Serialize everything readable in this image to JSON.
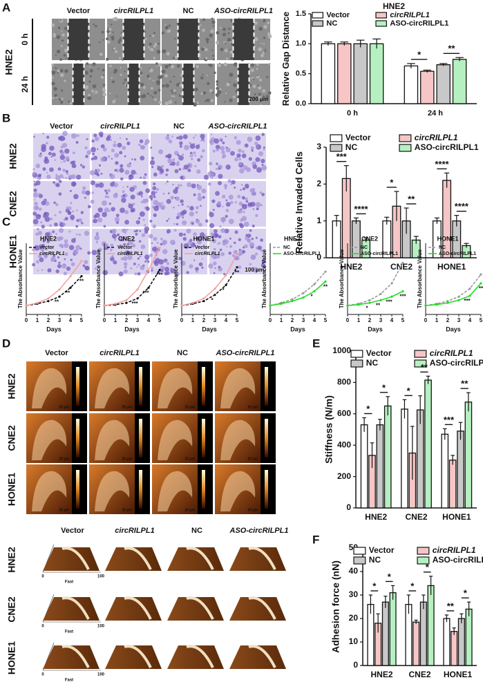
{
  "figure_panels": {
    "letters": [
      "A",
      "B",
      "C",
      "D",
      "E",
      "F"
    ]
  },
  "image_panels": {
    "A": {
      "columns": [
        "Vector",
        "circRILPL1",
        "NC",
        "ASO-circRILPL1"
      ],
      "cell_line": "HNE2",
      "rows": [
        "0 h",
        "24 h"
      ],
      "scale_bar": "200 μm"
    },
    "B": {
      "columns": [
        "Vector",
        "circRILPL1",
        "NC",
        "ASO-circRILPL1"
      ],
      "rows": [
        "HNE2",
        "CNE2",
        "HONE1"
      ],
      "scale_bar": "100 μm"
    },
    "D_top": {
      "columns": [
        "Vector",
        "circRILPL1",
        "NC",
        "ASO-circRILPL1"
      ],
      "rows": [
        "HNE2",
        "CNE2",
        "HONE1"
      ],
      "scale_bar": "20 μm"
    },
    "D_bottom": {
      "columns": [
        "Vector",
        "circRILPL1",
        "NC",
        "ASO-circRILPL1"
      ],
      "rows": [
        "HNE2",
        "CNE2",
        "HONE1"
      ],
      "axis_labels": [
        "Fast",
        "0",
        "100"
      ]
    }
  },
  "chart_data": [
    {
      "type": "bar",
      "title": "HNE2",
      "y_label": "Relative Gap Distance",
      "categories": [
        "0 h",
        "24 h"
      ],
      "series": [
        {
          "name": "Vector",
          "color": "#ffffff",
          "values": [
            1,
            0.63
          ],
          "errors": [
            0.03,
            0.04
          ]
        },
        {
          "name": "circRILPL1",
          "color": "#f6c6c6",
          "values": [
            1,
            0.54
          ],
          "errors": [
            0.03,
            0.02
          ]
        },
        {
          "name": "NC",
          "color": "#c8c8c8",
          "values": [
            1,
            0.65
          ],
          "errors": [
            0.06,
            0.02
          ]
        },
        {
          "name": "ASO-circRILPL1",
          "color": "#b6f0c0",
          "values": [
            1,
            0.74
          ],
          "errors": [
            0.08,
            0.03
          ]
        }
      ],
      "ylim": [
        0,
        1.5
      ],
      "yticks": [
        {
          "value": 0,
          "label": "0.0"
        },
        {
          "value": 0.5,
          "label": "0.5"
        },
        {
          "value": 1,
          "label": "1.0"
        },
        {
          "value": 1.5,
          "label": "1.5"
        }
      ],
      "significance": [
        {
          "category": "24 h",
          "between": [
            "Vector",
            "circRILPL1"
          ],
          "label": "*"
        },
        {
          "category": "24 h",
          "between": [
            "NC",
            "ASO-circRILPL1"
          ],
          "label": "**"
        }
      ]
    },
    {
      "type": "bar",
      "y_label": "Relative Invaded Cells",
      "categories": [
        "HNE2",
        "CNE2",
        "HONE1"
      ],
      "series": [
        {
          "name": "Vector",
          "color": "#ffffff",
          "values": [
            1,
            1,
            1
          ],
          "errors": [
            0.15,
            0.1,
            0.08
          ]
        },
        {
          "name": "circRILPL1",
          "color": "#f6c6c6",
          "values": [
            2.15,
            1.4,
            2.1
          ],
          "errors": [
            0.35,
            0.4,
            0.2
          ]
        },
        {
          "name": "NC",
          "color": "#c8c8c8",
          "values": [
            1,
            1,
            1
          ],
          "errors": [
            0.08,
            0.35,
            0.15
          ]
        },
        {
          "name": "ASO-circRILPL1",
          "color": "#b6f0c0",
          "values": [
            0.48,
            0.48,
            0.33
          ],
          "errors": [
            0.06,
            0.1,
            0.06
          ]
        }
      ],
      "ylim": [
        0,
        3
      ],
      "yticks": [
        0,
        1,
        2,
        3
      ],
      "significance": [
        {
          "category": "HNE2",
          "between": [
            "Vector",
            "circRILPL1"
          ],
          "label": "***"
        },
        {
          "category": "HNE2",
          "between": [
            "NC",
            "ASO-circRILPL1"
          ],
          "label": "****"
        },
        {
          "category": "CNE2",
          "between": [
            "Vector",
            "circRILPL1"
          ],
          "label": "*"
        },
        {
          "category": "CNE2",
          "between": [
            "NC",
            "ASO-circRILPL1"
          ],
          "label": "**"
        },
        {
          "category": "HONE1",
          "between": [
            "Vector",
            "circRILPL1"
          ],
          "label": "****"
        },
        {
          "category": "HONE1",
          "between": [
            "NC",
            "ASO-circRILPL1"
          ],
          "label": "****"
        }
      ]
    },
    {
      "type": "line",
      "title": "HNE2",
      "x_label": "Days",
      "y_label": "The Absorbance Value",
      "x": [
        0,
        1,
        2,
        3,
        4,
        5
      ],
      "xlim": [
        0,
        5
      ],
      "xticks": [
        0,
        1,
        2,
        3,
        4,
        5
      ],
      "ylim": [
        0,
        8
      ],
      "series": [
        {
          "name": "Vector",
          "color": "#111111",
          "line_style": "dashed",
          "values": [
            1,
            1.2,
            1.5,
            2,
            3,
            4.3
          ]
        },
        {
          "name": "circRILPL1",
          "color": "#f4a0a0",
          "line_style": "solid",
          "values": [
            1,
            1.3,
            1.8,
            2.8,
            4.3,
            6
          ]
        }
      ],
      "significance": [
        {
          "x": 3,
          "label": "**"
        },
        {
          "x": 4,
          "label": "**"
        },
        {
          "x": 5,
          "label": "**"
        }
      ]
    },
    {
      "type": "line",
      "title": "CNE2",
      "x_label": "Days",
      "y_label": "The Absorbance Value",
      "x": [
        0,
        1,
        2,
        3,
        4,
        5
      ],
      "xlim": [
        0,
        5
      ],
      "xticks": [
        0,
        1,
        2,
        3,
        4,
        5
      ],
      "ylim": [
        0,
        8
      ],
      "series": [
        {
          "name": "Vector",
          "color": "#111111",
          "line_style": "dashed",
          "values": [
            1,
            1.1,
            1.3,
            1.8,
            3,
            5
          ]
        },
        {
          "name": "circRILPL1",
          "color": "#f4a0a0",
          "line_style": "solid",
          "values": [
            1,
            1.2,
            1.6,
            2.8,
            5,
            7.5
          ]
        }
      ],
      "significance": [
        {
          "x": 3,
          "label": "***"
        },
        {
          "x": 4,
          "label": "***"
        },
        {
          "x": 5,
          "label": "***"
        }
      ]
    },
    {
      "type": "line",
      "title": "HONE1",
      "x_label": "Days",
      "y_label": "The Absorbance Value",
      "x": [
        0,
        1,
        2,
        3,
        4,
        5
      ],
      "xlim": [
        0,
        5
      ],
      "xticks": [
        0,
        1,
        2,
        3,
        4,
        5
      ],
      "ylim": [
        0,
        8
      ],
      "series": [
        {
          "name": "Vector",
          "color": "#111111",
          "line_style": "dashed",
          "values": [
            1,
            1.2,
            1.5,
            2.2,
            3.3,
            5.3
          ]
        },
        {
          "name": "circRILPL1",
          "color": "#f4a0a0",
          "line_style": "solid",
          "values": [
            1,
            1.3,
            1.8,
            2.9,
            4.4,
            6.8
          ]
        }
      ],
      "significance": [
        {
          "x": 3,
          "label": "*"
        },
        {
          "x": 4,
          "label": "*"
        },
        {
          "x": 5,
          "label": "**"
        }
      ]
    },
    {
      "type": "line",
      "title": "HNE2",
      "x_label": "Days",
      "y_label": "The Absorbance Value",
      "x": [
        0,
        1,
        2,
        3,
        4,
        5
      ],
      "xlim": [
        0,
        5
      ],
      "xticks": [
        0,
        1,
        2,
        3,
        4,
        5
      ],
      "ylim": [
        0,
        8
      ],
      "series": [
        {
          "name": "NC",
          "color": "#999999",
          "line_style": "dashed",
          "values": [
            1,
            1.3,
            1.7,
            2.4,
            3.4,
            4.8
          ]
        },
        {
          "name": "ASO-circRILPL1",
          "color": "#22dd22",
          "line_style": "solid",
          "values": [
            1,
            1.2,
            1.5,
            1.9,
            2.6,
            3.7
          ]
        }
      ],
      "significance": [
        {
          "x": 4,
          "label": "*"
        },
        {
          "x": 5,
          "label": "**"
        }
      ]
    },
    {
      "type": "line",
      "title": "CNE2",
      "x_label": "Days",
      "y_label": "The Absorbance Value",
      "x": [
        0,
        1,
        2,
        3,
        4,
        5
      ],
      "xlim": [
        0,
        5
      ],
      "xticks": [
        0,
        1,
        2,
        3,
        4,
        5
      ],
      "ylim": [
        0,
        8
      ],
      "series": [
        {
          "name": "NC",
          "color": "#999999",
          "line_style": "dashed",
          "values": [
            1,
            1.2,
            1.6,
            2.3,
            3.5,
            5.8
          ]
        },
        {
          "name": "ASO-circRILPL1",
          "color": "#22dd22",
          "line_style": "solid",
          "values": [
            1,
            1.1,
            1.3,
            1.6,
            2,
            2.6
          ]
        }
      ],
      "significance": [
        {
          "x": 2,
          "label": "*"
        },
        {
          "x": 3,
          "label": "**"
        },
        {
          "x": 4,
          "label": "***"
        },
        {
          "x": 5,
          "label": "***"
        }
      ]
    },
    {
      "type": "line",
      "title": "HONE1",
      "x_label": "Days",
      "y_label": "The Absorbance Value",
      "x": [
        0,
        1,
        2,
        3,
        4,
        5
      ],
      "xlim": [
        0,
        5
      ],
      "xticks": [
        0,
        1,
        2,
        3,
        4,
        5
      ],
      "ylim": [
        0,
        8
      ],
      "series": [
        {
          "name": "NC",
          "color": "#999999",
          "line_style": "dashed",
          "values": [
            1,
            1.2,
            1.5,
            2,
            2.9,
            4.5
          ]
        },
        {
          "name": "ASO-circRILPL1",
          "color": "#22dd22",
          "line_style": "solid",
          "values": [
            1,
            1.1,
            1.3,
            1.6,
            2.1,
            3.5
          ]
        }
      ],
      "significance": [
        {
          "x": 4,
          "label": "***"
        },
        {
          "x": 5,
          "label": "**"
        }
      ]
    },
    {
      "type": "bar",
      "y_label": "Stiffness (N/m)",
      "categories": [
        "HNE2",
        "CNE2",
        "HONE1"
      ],
      "series": [
        {
          "name": "Vector",
          "color": "#ffffff",
          "values": [
            530,
            630,
            470
          ],
          "errors": [
            45,
            60,
            35
          ]
        },
        {
          "name": "circRILPL1",
          "color": "#f6c6c6",
          "values": [
            335,
            350,
            305
          ],
          "errors": [
            80,
            170,
            30
          ]
        },
        {
          "name": "NC",
          "color": "#c8c8c8",
          "values": [
            530,
            625,
            490
          ],
          "errors": [
            35,
            90,
            55
          ]
        },
        {
          "name": "ASO-circRILPL1",
          "color": "#b6f0c0",
          "values": [
            650,
            815,
            675
          ],
          "errors": [
            60,
            25,
            60
          ]
        }
      ],
      "ylim": [
        0,
        1000
      ],
      "yticks": [
        0,
        200,
        400,
        600,
        800,
        1000
      ],
      "significance": [
        {
          "category": "HNE2",
          "between": [
            "Vector",
            "circRILPL1"
          ],
          "label": "*"
        },
        {
          "category": "HNE2",
          "between": [
            "NC",
            "ASO-circRILPL1"
          ],
          "label": "*"
        },
        {
          "category": "CNE2",
          "between": [
            "Vector",
            "circRILPL1"
          ],
          "label": "*"
        },
        {
          "category": "CNE2",
          "between": [
            "NC",
            "ASO-circRILPL1"
          ],
          "label": "**"
        },
        {
          "category": "HONE1",
          "between": [
            "Vector",
            "circRILPL1"
          ],
          "label": "***"
        },
        {
          "category": "HONE1",
          "between": [
            "NC",
            "ASO-circRILPL1"
          ],
          "label": "**"
        }
      ]
    },
    {
      "type": "bar",
      "y_label": "Adhesion force (nN)",
      "categories": [
        "HNE2",
        "CNE2",
        "HONE1"
      ],
      "series": [
        {
          "name": "Vector",
          "color": "#ffffff",
          "values": [
            26,
            26,
            20
          ],
          "errors": [
            4,
            4,
            1.5
          ]
        },
        {
          "name": "circRILPL1",
          "color": "#f6c6c6",
          "values": [
            18,
            18.5,
            14.5
          ],
          "errors": [
            4,
            0.8,
            1.5
          ]
        },
        {
          "name": "NC",
          "color": "#c8c8c8",
          "values": [
            27,
            27,
            20
          ],
          "errors": [
            2.5,
            3,
            2
          ]
        },
        {
          "name": "ASO-circRILPL1",
          "color": "#b6f0c0",
          "values": [
            31,
            34,
            24
          ],
          "errors": [
            3,
            4,
            3
          ]
        }
      ],
      "ylim": [
        0,
        50
      ],
      "yticks": [
        0,
        10,
        20,
        30,
        40,
        50
      ],
      "significance": [
        {
          "category": "HNE2",
          "between": [
            "Vector",
            "circRILPL1"
          ],
          "label": "*"
        },
        {
          "category": "HNE2",
          "between": [
            "NC",
            "ASO-circRILPL1"
          ],
          "label": "*"
        },
        {
          "category": "CNE2",
          "between": [
            "Vector",
            "circRILPL1"
          ],
          "label": "*"
        },
        {
          "category": "CNE2",
          "between": [
            "NC",
            "ASO-circRILPL1"
          ],
          "label": "*"
        },
        {
          "category": "HONE1",
          "between": [
            "Vector",
            "circRILPL1"
          ],
          "label": "**"
        },
        {
          "category": "HONE1",
          "between": [
            "NC",
            "ASO-circRILPL1"
          ],
          "label": "*"
        }
      ]
    }
  ]
}
